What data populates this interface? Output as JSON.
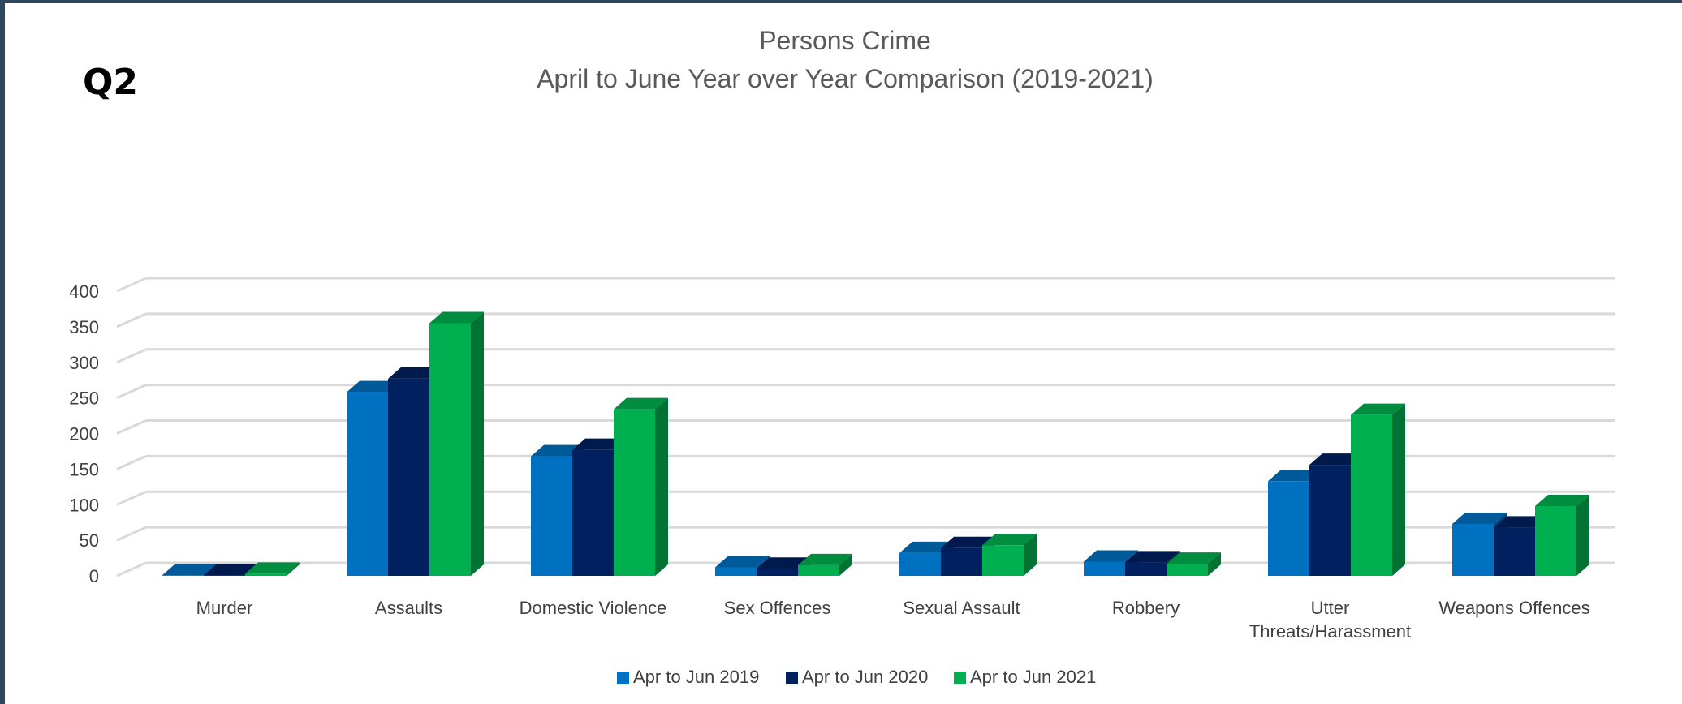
{
  "badge": "Q2",
  "chart_data": {
    "type": "bar",
    "title": "Persons Crime",
    "subtitle": "April to June Year over Year Comparison (2019-2021)",
    "xlabel": "",
    "ylabel": "",
    "ylim": [
      0,
      400
    ],
    "yticks": [
      0,
      50,
      100,
      150,
      200,
      250,
      300,
      350,
      400
    ],
    "grid": true,
    "legend_position": "bottom",
    "categories": [
      [
        "Murder"
      ],
      [
        "Assaults"
      ],
      [
        "Domestic Violence"
      ],
      [
        "Sex Offences"
      ],
      [
        "Sexual Assault"
      ],
      [
        "Robbery"
      ],
      [
        "Utter",
        "Threats/Harassment"
      ],
      [
        "Weapons Offences"
      ]
    ],
    "series": [
      {
        "name": "Apr to Jun 2019",
        "color": "#0070c0",
        "values": [
          1,
          258,
          168,
          12,
          32,
          20,
          133,
          73
        ]
      },
      {
        "name": "Apr to Jun 2020",
        "color": "#002060",
        "values": [
          1,
          277,
          177,
          10,
          39,
          19,
          156,
          68
        ]
      },
      {
        "name": "Apr to Jun 2021",
        "color": "#00b050",
        "values": [
          3,
          355,
          234,
          15,
          43,
          17,
          226,
          98
        ]
      }
    ]
  }
}
